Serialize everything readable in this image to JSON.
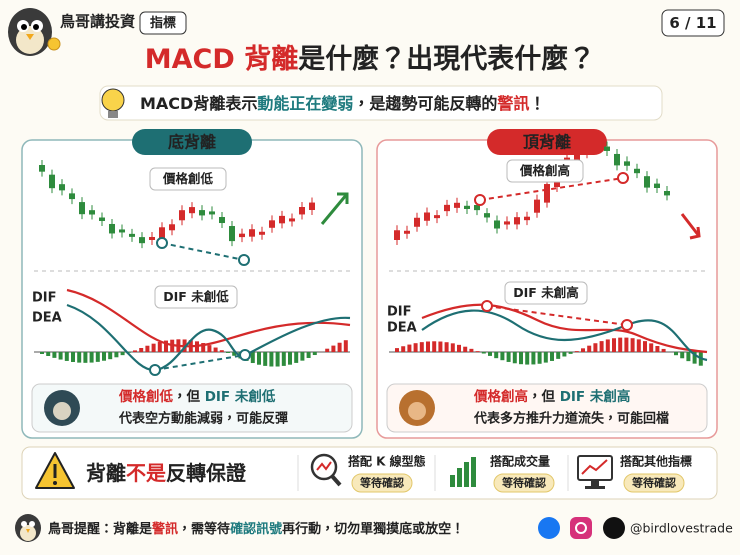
{
  "header": {
    "brand": "鳥哥講投資",
    "tag": "指標",
    "page": "6 / 11",
    "title_red": "MACD 背離",
    "title_rest": "是什麼？出現代表什麼？"
  },
  "subtitle": [
    "MACD背離表示",
    "動能正在變弱",
    "，是趨勢可能反轉的",
    "警訊",
    "！"
  ],
  "panels": [
    {
      "title": "底背離",
      "price_label": "價格創低",
      "dif_label": "DIF 未創低",
      "dif": "DIF",
      "dea": "DEA",
      "note": [
        "價格創低",
        "，但 ",
        "DIF 未創低"
      ],
      "note_line2": "代表空方動能減弱，可能反彈"
    },
    {
      "title": "頂背離",
      "price_label": "價格創高",
      "dif_label": "DIF 未創高",
      "dif": "DIF",
      "dea": "DEA",
      "note": [
        "價格創高",
        "，但 ",
        "DIF 未創高"
      ],
      "note_line2": "代表多方推升力道流失，可能回檔"
    }
  ],
  "warning": [
    "背離",
    "不是",
    "反轉保證"
  ],
  "tips": [
    {
      "label": "搭配 K 線型態",
      "badge": "等待確認"
    },
    {
      "label": "搭配成交量",
      "badge": "等待確認"
    },
    {
      "label": "搭配其他指標",
      "badge": "等待確認"
    }
  ],
  "footer": {
    "reminder": [
      "鳥哥提醒：",
      "背離是",
      "警訊",
      "，需等待",
      "確認訊號",
      "再行動，切勿單獨摸底或放空！"
    ],
    "handle": "@birdlovestrade"
  }
}
